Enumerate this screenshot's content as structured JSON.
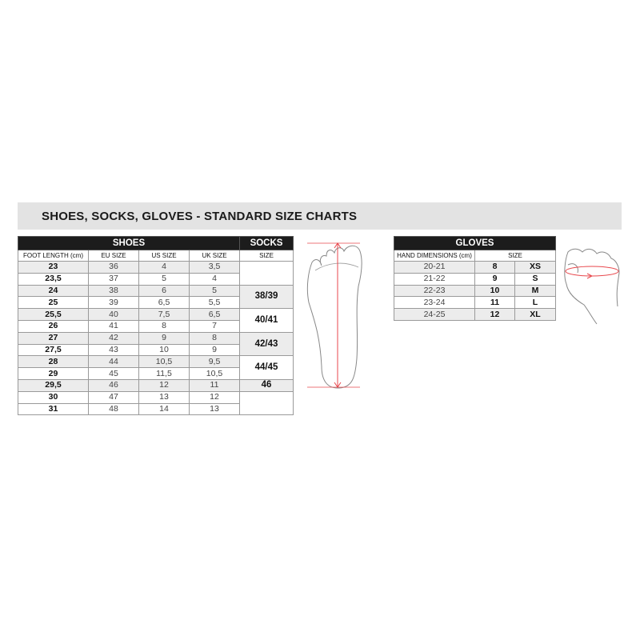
{
  "title": "SHOES, SOCKS, GLOVES - STANDARD SIZE CHARTS",
  "shoes": {
    "header": "SHOES",
    "socks_header": "SOCKS",
    "columns": [
      "FOOT LENGTH (cm)",
      "EU SIZE",
      "US SIZE",
      "UK SIZE"
    ],
    "socks_column": "SIZE",
    "rows": [
      [
        "23",
        "36",
        "4",
        "3,5"
      ],
      [
        "23,5",
        "37",
        "5",
        "4"
      ],
      [
        "24",
        "38",
        "6",
        "5"
      ],
      [
        "25",
        "39",
        "6,5",
        "5,5"
      ],
      [
        "25,5",
        "40",
        "7,5",
        "6,5"
      ],
      [
        "26",
        "41",
        "8",
        "7"
      ],
      [
        "27",
        "42",
        "9",
        "8"
      ],
      [
        "27,5",
        "43",
        "10",
        "9"
      ],
      [
        "28",
        "44",
        "10,5",
        "9,5"
      ],
      [
        "29",
        "45",
        "11,5",
        "10,5"
      ],
      [
        "29,5",
        "46",
        "12",
        "11"
      ],
      [
        "30",
        "47",
        "13",
        "12"
      ],
      [
        "31",
        "48",
        "14",
        "13"
      ]
    ],
    "socks": [
      {
        "label": "",
        "span": 2,
        "shaded": false
      },
      {
        "label": "38/39",
        "span": 2,
        "shaded": true
      },
      {
        "label": "40/41",
        "span": 2,
        "shaded": false
      },
      {
        "label": "42/43",
        "span": 2,
        "shaded": true
      },
      {
        "label": "44/45",
        "span": 2,
        "shaded": false
      },
      {
        "label": "46",
        "span": 1,
        "shaded": true
      },
      {
        "label": "",
        "span": 2,
        "shaded": false
      }
    ]
  },
  "gloves": {
    "header": "GLOVES",
    "columns": [
      "HAND DIMENSIONS (cm)",
      "SIZE"
    ],
    "rows": [
      [
        "20-21",
        "8",
        "XS"
      ],
      [
        "21-22",
        "9",
        "S"
      ],
      [
        "22-23",
        "10",
        "M"
      ],
      [
        "23-24",
        "11",
        "L"
      ],
      [
        "24-25",
        "12",
        "XL"
      ]
    ]
  },
  "colors": {
    "measure_line": "#e8474c",
    "header_bg": "#1c1c1c",
    "stripe": "#ececec"
  }
}
